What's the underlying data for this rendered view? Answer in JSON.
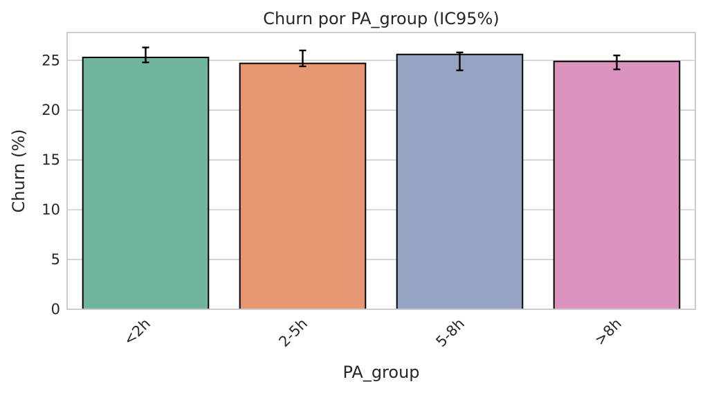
{
  "chart_data": {
    "type": "bar",
    "title": "Churn por PA_group (IC95%)",
    "xlabel": "PA_group",
    "ylabel": "Churn (%)",
    "categories": [
      "<2h",
      "2-5h",
      "5-8h",
      ">8h"
    ],
    "values": [
      25.3,
      24.7,
      25.6,
      24.9
    ],
    "ci_low": [
      24.8,
      24.4,
      24.0,
      24.1
    ],
    "ci_high": [
      26.3,
      26.0,
      25.8,
      25.5
    ],
    "colors": [
      "#72b59f",
      "#e89775",
      "#95a4c3",
      "#db94bd"
    ],
    "ylim": [
      0,
      27.8
    ],
    "yticks": [
      0,
      5,
      10,
      15,
      20,
      25
    ],
    "grid": "horizontal",
    "legend": "none"
  }
}
